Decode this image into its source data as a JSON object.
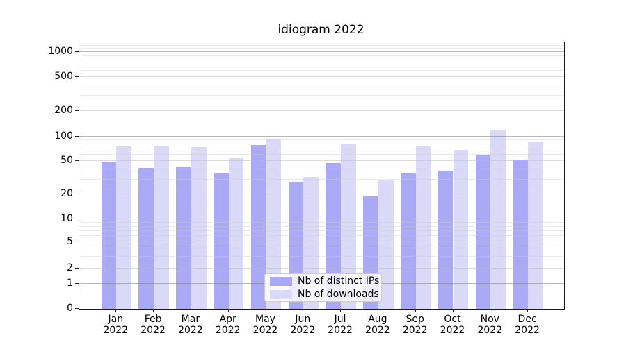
{
  "title": "idiogram 2022",
  "chart_data": {
    "type": "bar",
    "title": "idiogram 2022",
    "categories": [
      "Jan 2022",
      "Feb 2022",
      "Mar 2022",
      "Apr 2022",
      "May 2022",
      "Jun 2022",
      "Jul 2022",
      "Aug 2022",
      "Sep 2022",
      "Oct 2022",
      "Nov 2022",
      "Dec 2022"
    ],
    "x_tick_months": [
      "Jan",
      "Feb",
      "Mar",
      "Apr",
      "May",
      "Jun",
      "Jul",
      "Aug",
      "Sep",
      "Oct",
      "Nov",
      "Dec"
    ],
    "x_tick_year": "2022",
    "series": [
      {
        "name": "Nb of distinct IPs",
        "color": "#a9a9f5",
        "values": [
          49,
          41,
          43,
          36,
          79,
          28,
          47,
          19,
          36,
          38,
          59,
          52
        ]
      },
      {
        "name": "Nb of downloads",
        "color": "#dadaf8",
        "values": [
          76,
          77,
          75,
          54,
          94,
          32,
          82,
          30,
          76,
          69,
          121,
          87
        ]
      }
    ],
    "yticks": [
      0,
      1,
      2,
      5,
      10,
      20,
      50,
      100,
      200,
      500,
      1000
    ],
    "xlabel": "",
    "ylabel": "",
    "yscale": "symlog",
    "ylim": [
      0,
      1300
    ],
    "grid": true,
    "legend": {
      "entries": [
        "Nb of distinct IPs",
        "Nb of downloads"
      ],
      "position": "lower center"
    }
  }
}
